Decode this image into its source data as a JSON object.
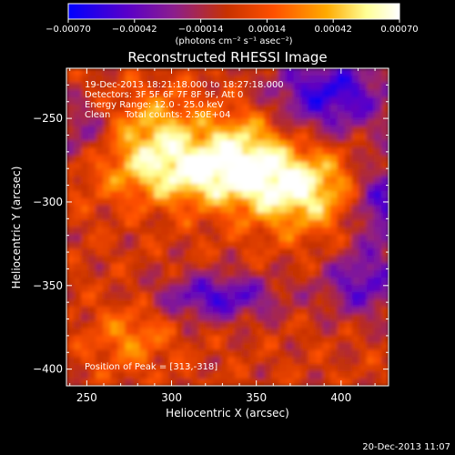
{
  "chart_data": {
    "type": "heatmap",
    "title": "Reconstructed RHESSI Image",
    "xlabel": "Heliocentric X (arcsec)",
    "ylabel": "Heliocentric Y (arcsec)",
    "xlim": [
      238,
      428
    ],
    "ylim": [
      -410,
      -220
    ],
    "x_ticks": [
      250,
      300,
      350,
      400
    ],
    "y_ticks": [
      -250,
      -300,
      -350,
      -400
    ],
    "x_tick_labels": [
      "250",
      "300",
      "350",
      "400"
    ],
    "y_tick_labels": [
      "−250",
      "−300",
      "−350",
      "−400"
    ],
    "colorbar": {
      "range": [
        -0.0007,
        0.0007
      ],
      "ticks": [
        -0.0007,
        -0.00042,
        -0.00014,
        0.00014,
        0.00042,
        0.0007
      ],
      "tick_labels": [
        "−0.00070",
        "−0.00042",
        "−0.00014",
        "0.00014",
        "0.00042",
        "0.00070"
      ],
      "unit_label": "(photons cm⁻² s⁻¹ asec⁻²)",
      "colormap": [
        "#0000ff",
        "#5a00c8",
        "#8c1e8c",
        "#c83200",
        "#ff5000",
        "#ffaa00",
        "#ffff96",
        "#ffffff"
      ]
    },
    "annotations": [
      "19-Dec-2013 18:21:18.000 to 18:27:18.000",
      "Detectors: 3F 5F 6F 7F 8F 9F, Att 0",
      "Energy Range: 12.0 - 25.0 keV",
      "Clean     Total counts: 2.50E+04"
    ],
    "peak_label": "Position of Peak = [313,-318]",
    "peak": [
      313,
      -318
    ],
    "total_counts": 25000,
    "energy_range_kev": [
      12.0,
      25.0
    ],
    "grid": false
  },
  "footer": {
    "timestamp": "20-Dec-2013 11:07"
  }
}
